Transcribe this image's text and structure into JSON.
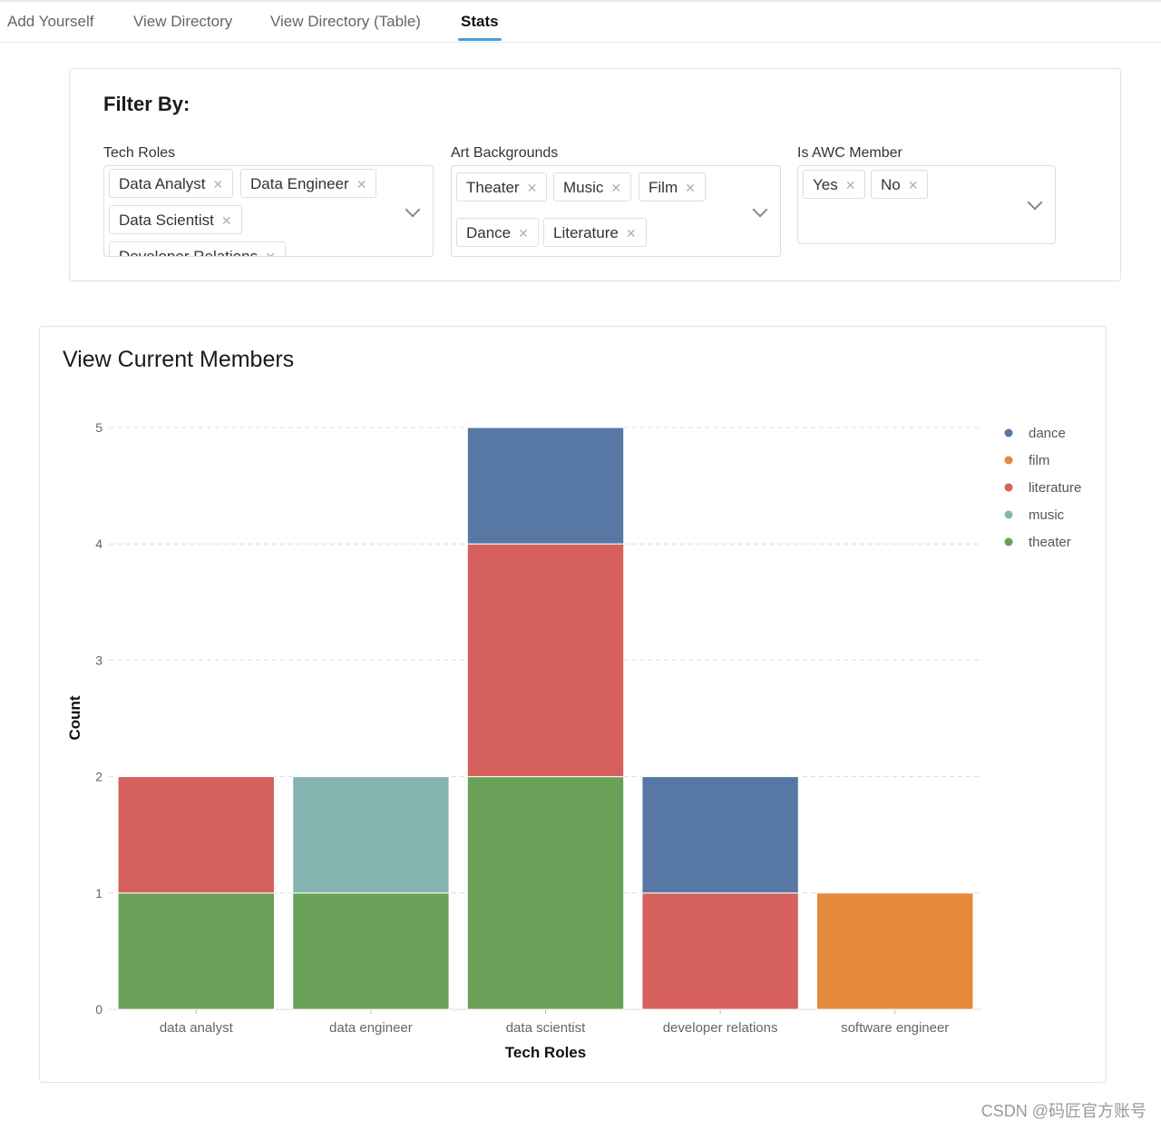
{
  "tabs": [
    {
      "label": "Add Yourself",
      "active": false
    },
    {
      "label": "View Directory",
      "active": false
    },
    {
      "label": "View Directory (Table)",
      "active": false
    },
    {
      "label": "Stats",
      "active": true
    }
  ],
  "filter": {
    "title": "Filter By:",
    "tech_roles": {
      "label": "Tech Roles",
      "selected": [
        "Data Analyst",
        "Data Engineer",
        "Data Scientist",
        "Developer Relations"
      ]
    },
    "art_backgrounds": {
      "label": "Art Backgrounds",
      "selected": [
        "Theater",
        "Music",
        "Film",
        "Dance",
        "Literature"
      ]
    },
    "awc_member": {
      "label": "Is AWC Member",
      "selected": [
        "Yes",
        "No"
      ]
    },
    "remove_glyph": "✕"
  },
  "chart_section": {
    "title": "View Current Members"
  },
  "chart_data": {
    "type": "bar",
    "stacked": true,
    "categories": [
      "data analyst",
      "data engineer",
      "data scientist",
      "developer relations",
      "software engineer"
    ],
    "series": [
      {
        "name": "theater",
        "color": "#6aa158",
        "values": [
          1,
          1,
          2,
          0,
          0
        ]
      },
      {
        "name": "music",
        "color": "#86b5b1",
        "values": [
          0,
          1,
          0,
          0,
          0
        ]
      },
      {
        "name": "literature",
        "color": "#d6605b",
        "values": [
          1,
          0,
          2,
          1,
          0
        ]
      },
      {
        "name": "film",
        "color": "#e5893a",
        "values": [
          0,
          0,
          0,
          0,
          1
        ]
      },
      {
        "name": "dance",
        "color": "#5778a5",
        "values": [
          0,
          0,
          1,
          1,
          0
        ]
      }
    ],
    "legend_order": [
      "dance",
      "film",
      "literature",
      "music",
      "theater"
    ],
    "xlabel": "Tech Roles",
    "ylabel": "Count",
    "ylim": [
      0,
      5
    ],
    "yticks": [
      0,
      1,
      2,
      3,
      4,
      5
    ],
    "grid": "horizontal dashed",
    "legend": "right"
  },
  "watermark": "CSDN @码匠官方账号"
}
